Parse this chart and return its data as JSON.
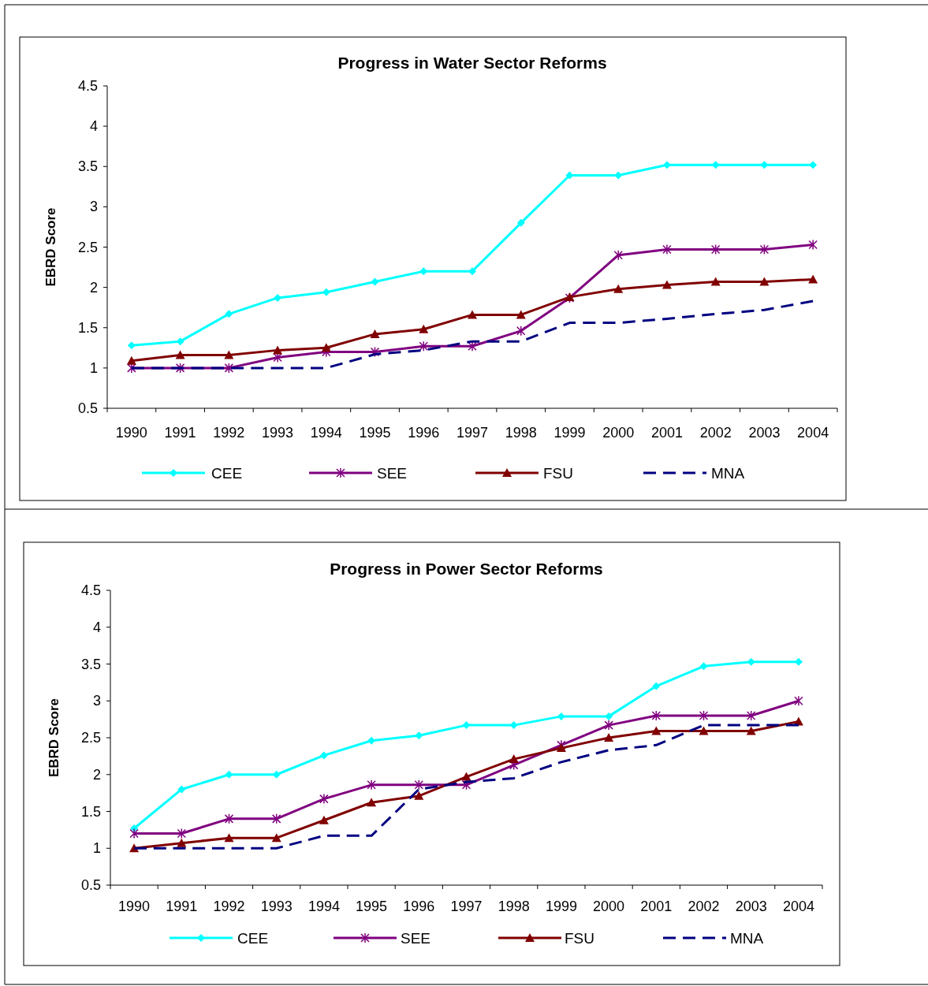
{
  "chart_data": [
    {
      "type": "line",
      "title": "Progress in Water Sector Reforms",
      "ylabel": "EBRD Score",
      "categories": [
        "1990",
        "1991",
        "1992",
        "1993",
        "1994",
        "1995",
        "1996",
        "1997",
        "1998",
        "1999",
        "2000",
        "2001",
        "2002",
        "2003",
        "2004"
      ],
      "ylim": [
        0.5,
        4.5
      ],
      "yticks": [
        0.5,
        1,
        1.5,
        2,
        2.5,
        3,
        3.5,
        4,
        4.5
      ],
      "grid": false,
      "legend": "bottom",
      "series": [
        {
          "name": "CEE",
          "color": "#00ffff",
          "marker": "diamond",
          "line_style": "solid",
          "values": [
            1.28,
            1.33,
            1.67,
            1.87,
            1.94,
            2.07,
            2.2,
            2.2,
            2.8,
            3.39,
            3.39,
            3.52,
            3.52,
            3.52,
            3.52
          ]
        },
        {
          "name": "SEE",
          "color": "#800080",
          "marker": "cross",
          "line_style": "solid",
          "values": [
            1,
            1,
            1,
            1.13,
            1.2,
            1.2,
            1.27,
            1.27,
            1.46,
            1.87,
            2.4,
            2.47,
            2.47,
            2.47,
            2.53
          ]
        },
        {
          "name": "FSU",
          "color": "#800000",
          "marker": "triangle",
          "line_style": "solid",
          "values": [
            1.09,
            1.16,
            1.16,
            1.22,
            1.25,
            1.42,
            1.48,
            1.66,
            1.66,
            1.88,
            1.98,
            2.03,
            2.07,
            2.07,
            2.1
          ]
        },
        {
          "name": "MNA",
          "color": "#000080",
          "marker": "none",
          "line_style": "dashed",
          "values": [
            1,
            1,
            1,
            1,
            1,
            1.17,
            1.22,
            1.33,
            1.33,
            1.56,
            1.56,
            1.61,
            1.67,
            1.72,
            1.83
          ]
        }
      ]
    },
    {
      "type": "line",
      "title": "Progress in Power Sector Reforms",
      "ylabel": "EBRD Score",
      "categories": [
        "1990",
        "1991",
        "1992",
        "1993",
        "1994",
        "1995",
        "1996",
        "1997",
        "1998",
        "1999",
        "2000",
        "2001",
        "2002",
        "2003",
        "2004"
      ],
      "ylim": [
        0.5,
        4.5
      ],
      "yticks": [
        0.5,
        1,
        1.5,
        2,
        2.5,
        3,
        3.5,
        4,
        4.5
      ],
      "grid": false,
      "legend": "bottom",
      "series": [
        {
          "name": "CEE",
          "color": "#00ffff",
          "marker": "diamond",
          "line_style": "solid",
          "values": [
            1.27,
            1.8,
            2,
            2,
            2.26,
            2.46,
            2.53,
            2.67,
            2.67,
            2.79,
            2.79,
            3.2,
            3.47,
            3.53,
            3.53
          ]
        },
        {
          "name": "SEE",
          "color": "#800080",
          "marker": "cross",
          "line_style": "solid",
          "values": [
            1.2,
            1.2,
            1.4,
            1.4,
            1.67,
            1.86,
            1.86,
            1.86,
            2.13,
            2.4,
            2.67,
            2.8,
            2.8,
            2.8,
            3
          ]
        },
        {
          "name": "FSU",
          "color": "#800000",
          "marker": "triangle",
          "line_style": "solid",
          "values": [
            1,
            1.07,
            1.14,
            1.14,
            1.38,
            1.62,
            1.71,
            1.97,
            2.21,
            2.36,
            2.5,
            2.59,
            2.59,
            2.59,
            2.72
          ]
        },
        {
          "name": "MNA",
          "color": "#000080",
          "marker": "none",
          "line_style": "dashed",
          "values": [
            1,
            1,
            1,
            1,
            1.17,
            1.17,
            1.8,
            1.9,
            1.95,
            2.17,
            2.33,
            2.4,
            2.67,
            2.67,
            2.67
          ]
        }
      ]
    }
  ]
}
